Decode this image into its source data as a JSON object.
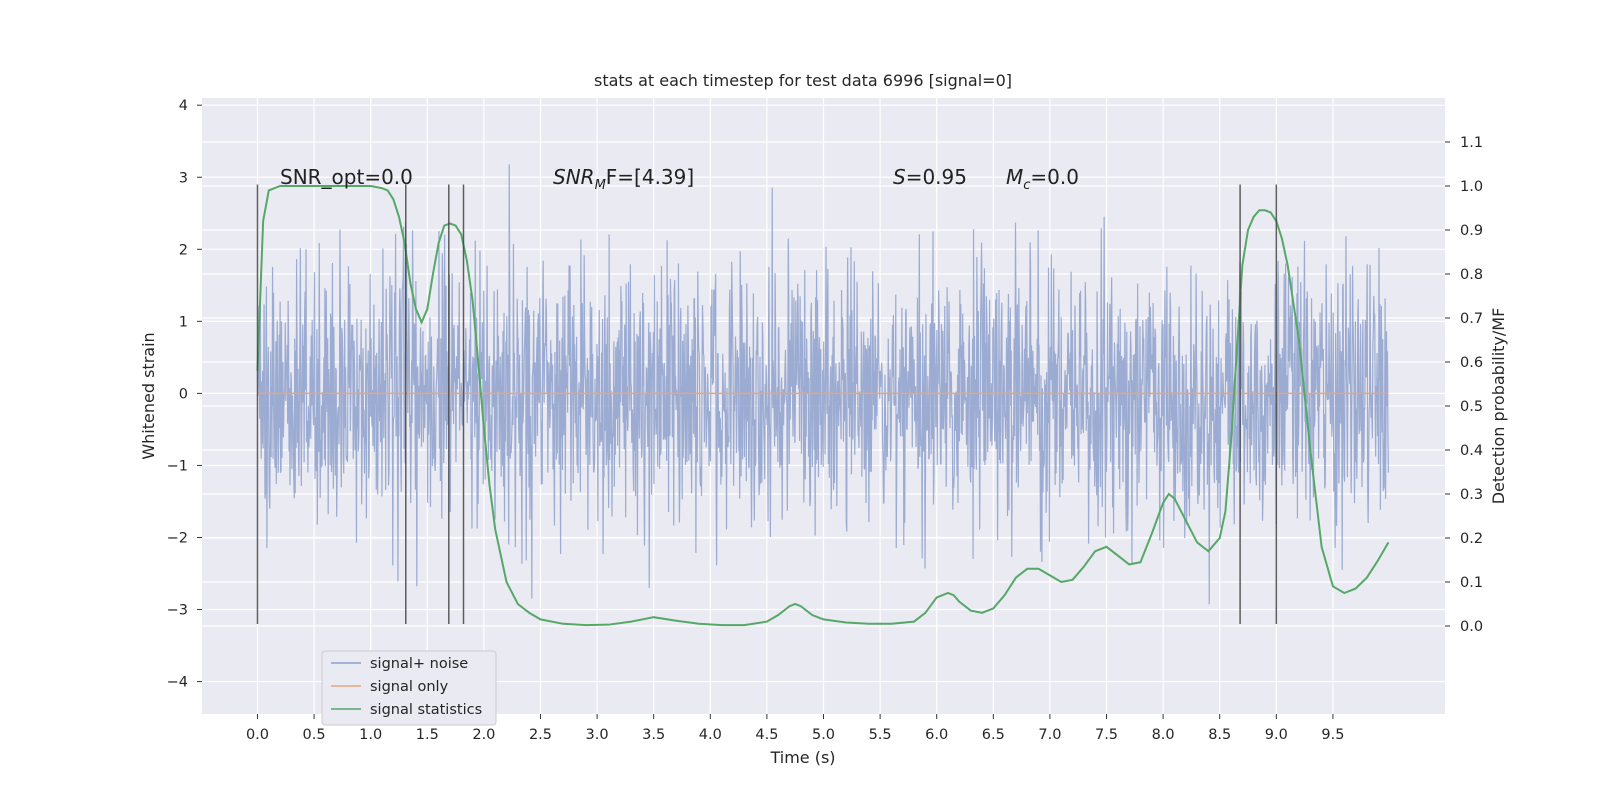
{
  "chart_data": {
    "type": "line",
    "title": "stats at each timestep for test data 6996 [signal=0]",
    "xlabel": "Time (s)",
    "ylabel_left": "Whitened strain",
    "ylabel_right": "Detection probability/MF",
    "xlim": [
      -0.49,
      10.49
    ],
    "ylim_left": [
      -4.45,
      4.1
    ],
    "ylim_right": [
      -0.2,
      1.2
    ],
    "grid": true,
    "x_ticks": [
      "0.0",
      "0.5",
      "1.0",
      "1.5",
      "2.0",
      "2.5",
      "3.0",
      "3.5",
      "4.0",
      "4.5",
      "5.0",
      "5.5",
      "6.0",
      "6.5",
      "7.0",
      "7.5",
      "8.0",
      "8.5",
      "9.0",
      "9.5"
    ],
    "y_ticks_left": [
      "4",
      "3",
      "2",
      "1",
      "0",
      "−1",
      "−2",
      "−3",
      "−4"
    ],
    "y_ticks_right": [
      "1.1",
      "1.0",
      "0.9",
      "0.8",
      "0.7",
      "0.6",
      "0.5",
      "0.4",
      "0.3",
      "0.2",
      "0.1",
      "0.0"
    ],
    "annotations": {
      "snr_opt": "SNR_opt=0.0",
      "snr_mf": "SNR",
      "snr_mf_sub": "M",
      "snr_mf_rest": "F=[4.39]",
      "s_label": "S",
      "s_value": "=0.95",
      "mc_label": "M",
      "mc_sub": "c",
      "mc_value": "=0.0"
    },
    "legend": {
      "placement": "lower-left",
      "entries": [
        {
          "label": "signal+ noise",
          "color": "#8da0cb"
        },
        {
          "label": "signal only",
          "color": "#e8a47f"
        },
        {
          "label": "signal statistics",
          "color": "#55a868"
        }
      ]
    },
    "vertical_lines_x": [
      0.0,
      1.31,
      1.69,
      1.82,
      8.68,
      9.0
    ],
    "vertical_lines_ylim": [
      -3.2,
      2.9
    ],
    "series": [
      {
        "name": "signal+ noise",
        "axis": "left",
        "color": "#8da0cb",
        "description_values": "dense noise approximately within ±2.5, spikes to about ±3.7",
        "noise_std": 0.9,
        "x_range": [
          0.0,
          9.99
        ]
      },
      {
        "name": "signal only",
        "axis": "left",
        "color": "#e8a47f",
        "x": [
          0.0,
          9.99
        ],
        "y": [
          0.0,
          0.0
        ]
      },
      {
        "name": "signal statistics",
        "axis": "right",
        "color": "#55a868",
        "x": [
          0.0,
          0.05,
          0.1,
          0.15,
          0.2,
          0.3,
          0.5,
          0.8,
          1.0,
          1.1,
          1.15,
          1.2,
          1.25,
          1.3,
          1.35,
          1.4,
          1.45,
          1.5,
          1.55,
          1.6,
          1.65,
          1.7,
          1.75,
          1.8,
          1.85,
          1.9,
          1.95,
          2.0,
          2.05,
          2.1,
          2.2,
          2.3,
          2.4,
          2.5,
          2.7,
          2.9,
          3.1,
          3.3,
          3.5,
          3.7,
          3.9,
          4.1,
          4.3,
          4.5,
          4.6,
          4.7,
          4.75,
          4.8,
          4.9,
          5.0,
          5.2,
          5.4,
          5.6,
          5.8,
          5.9,
          6.0,
          6.1,
          6.15,
          6.2,
          6.3,
          6.4,
          6.5,
          6.6,
          6.7,
          6.8,
          6.9,
          7.0,
          7.1,
          7.2,
          7.3,
          7.4,
          7.5,
          7.6,
          7.7,
          7.8,
          7.9,
          8.0,
          8.05,
          8.1,
          8.2,
          8.3,
          8.4,
          8.5,
          8.55,
          8.6,
          8.65,
          8.7,
          8.75,
          8.8,
          8.85,
          8.9,
          8.95,
          9.0,
          9.05,
          9.1,
          9.2,
          9.3,
          9.4,
          9.5,
          9.6,
          9.7,
          9.8,
          9.9,
          9.99
        ],
        "y": [
          0.58,
          0.92,
          0.99,
          0.995,
          1.0,
          1.0,
          1.0,
          1.0,
          1.0,
          0.995,
          0.99,
          0.97,
          0.93,
          0.87,
          0.78,
          0.72,
          0.69,
          0.72,
          0.8,
          0.87,
          0.91,
          0.915,
          0.91,
          0.89,
          0.83,
          0.74,
          0.6,
          0.45,
          0.32,
          0.22,
          0.1,
          0.05,
          0.03,
          0.015,
          0.005,
          0.002,
          0.003,
          0.01,
          0.02,
          0.012,
          0.005,
          0.002,
          0.002,
          0.01,
          0.025,
          0.045,
          0.05,
          0.045,
          0.025,
          0.015,
          0.008,
          0.005,
          0.005,
          0.01,
          0.03,
          0.065,
          0.075,
          0.07,
          0.055,
          0.035,
          0.03,
          0.04,
          0.07,
          0.11,
          0.13,
          0.13,
          0.115,
          0.1,
          0.105,
          0.135,
          0.17,
          0.18,
          0.16,
          0.14,
          0.145,
          0.21,
          0.28,
          0.3,
          0.29,
          0.24,
          0.19,
          0.17,
          0.2,
          0.26,
          0.42,
          0.62,
          0.82,
          0.9,
          0.93,
          0.945,
          0.945,
          0.94,
          0.92,
          0.88,
          0.82,
          0.65,
          0.4,
          0.18,
          0.09,
          0.075,
          0.085,
          0.11,
          0.15,
          0.19
        ]
      }
    ]
  }
}
